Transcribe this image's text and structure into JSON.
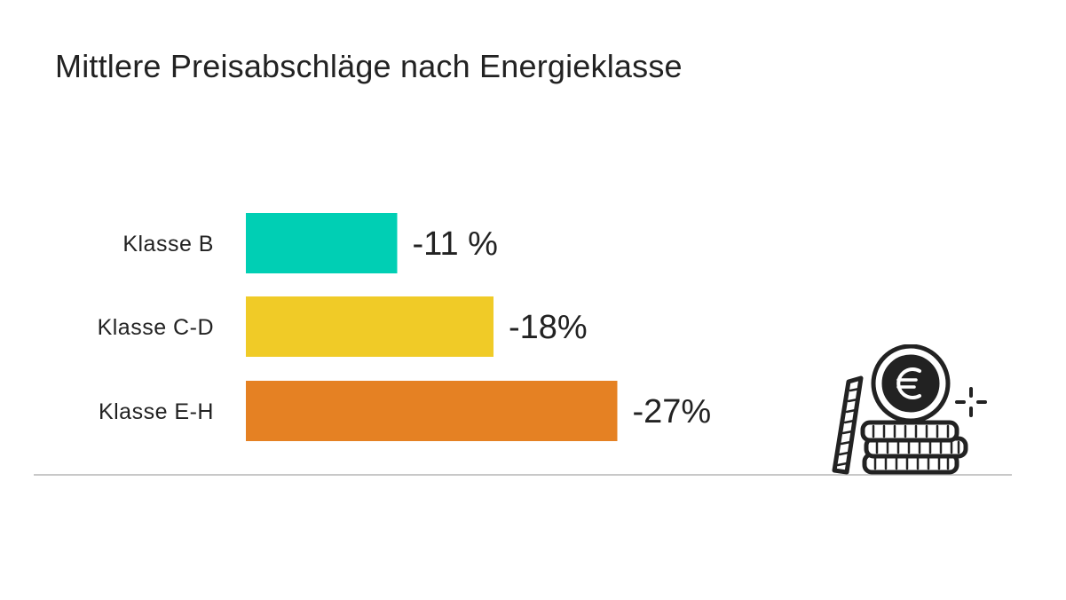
{
  "chart_data": {
    "type": "bar",
    "orientation": "horizontal",
    "title": "Mittlere Preisabschläge nach Energieklasse",
    "categories": [
      "Klasse B",
      "Klasse C-D",
      "Klasse E-H"
    ],
    "values": [
      -11,
      -18,
      -27
    ],
    "value_labels": [
      "-11 %",
      "-18%",
      "-27%"
    ],
    "unit": "%",
    "colors": [
      "#00cfb4",
      "#f0cb27",
      "#e58123"
    ],
    "axis_color": "#c8c8c8",
    "grid": false,
    "legend": "none"
  },
  "decoration": {
    "icon": "coin-stack-euro-icon"
  }
}
